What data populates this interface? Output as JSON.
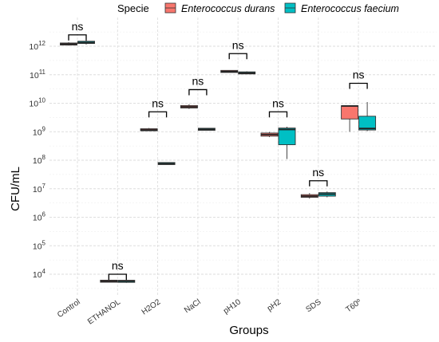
{
  "chart_data": {
    "type": "box",
    "xlabel": "Groups",
    "ylabel": "CFU/mL",
    "y_scale": "log10",
    "ylim": [
      1000,
      30000000000000
    ],
    "y_ticks": [
      {
        "value": 1000000000000,
        "base": "10",
        "exp": "12"
      },
      {
        "value": 100000000000,
        "base": "10",
        "exp": "11"
      },
      {
        "value": 10000000000,
        "base": "10",
        "exp": "10"
      },
      {
        "value": 1000000000,
        "base": "10",
        "exp": "9"
      },
      {
        "value": 100000000,
        "base": "10",
        "exp": "8"
      },
      {
        "value": 10000000,
        "base": "10",
        "exp": "7"
      },
      {
        "value": 1000000,
        "base": "10",
        "exp": "6"
      },
      {
        "value": 100000,
        "base": "10",
        "exp": "5"
      },
      {
        "value": 10000,
        "base": "10",
        "exp": "4"
      }
    ],
    "categories": [
      "Control",
      "ETHANOL",
      "H2O2",
      "NaCl",
      "pH10",
      "pH2",
      "SDS",
      "T60º"
    ],
    "legend": {
      "title": "Specie",
      "position": "top"
    },
    "grid": true,
    "series": [
      {
        "name": "Enterococcus durans",
        "color": "#F8766D",
        "boxes": [
          {
            "min": 1050000000000.0,
            "q1": 1100000000000.0,
            "median": 1200000000000.0,
            "q3": 1300000000000.0,
            "max": 1380000000000.0
          },
          {
            "min": 5300.0,
            "q1": 5500.0,
            "median": 5700.0,
            "q3": 5900.0,
            "max": 6000.0
          },
          {
            "min": 1050000000.0,
            "q1": 1100000000.0,
            "median": 1150000000.0,
            "q3": 1250000000.0,
            "max": 1350000000.0
          },
          {
            "min": 6300000000.0,
            "q1": 6800000000.0,
            "median": 7500000000.0,
            "q3": 8300000000.0,
            "max": 9200000000.0
          },
          {
            "min": 128000000000.0,
            "q1": 129000000000.0,
            "median": 130000000000.0,
            "q3": 132000000000.0,
            "max": 133000000000.0
          },
          {
            "min": 650000000.0,
            "q1": 700000000.0,
            "median": 800000000.0,
            "q3": 900000000.0,
            "max": 980000000.0
          },
          {
            "min": 4500000.0,
            "q1": 5000000.0,
            "median": 5500000.0,
            "q3": 6200000.0,
            "max": 7000000.0
          },
          {
            "min": 1000000000.0,
            "q1": 2800000000.0,
            "median": 8000000000.0,
            "q3": 8200000000.0,
            "max": 8500000000.0
          }
        ]
      },
      {
        "name": "Enterococcus faecium",
        "color": "#00BFC4",
        "boxes": [
          {
            "min": 1150000000000.0,
            "q1": 1250000000000.0,
            "median": 1350000000000.0,
            "q3": 1500000000000.0,
            "max": 1650000000000.0
          },
          {
            "min": 5000.0,
            "q1": 5300.0,
            "median": 5700.0,
            "q3": 6000.0,
            "max": 6300.0
          },
          {
            "min": 70000000.0,
            "q1": 73000000.0,
            "median": 76000000.0,
            "q3": 80000000.0,
            "max": 83000000.0
          },
          {
            "min": 1180000000.0,
            "q1": 1200000000.0,
            "median": 1220000000.0,
            "q3": 1240000000.0,
            "max": 1260000000.0
          },
          {
            "min": 105000000000.0,
            "q1": 110000000000.0,
            "median": 115000000000.0,
            "q3": 122000000000.0,
            "max": 132000000000.0
          },
          {
            "min": 110000000.0,
            "q1": 350000000.0,
            "median": 1200000000.0,
            "q3": 1350000000.0,
            "max": 1500000000.0
          },
          {
            "min": 5000000.0,
            "q1": 5500000.0,
            "median": 6500000.0,
            "q3": 7300000.0,
            "max": 8000000.0
          },
          {
            "min": 1050000000.0,
            "q1": 1150000000.0,
            "median": 1300000000.0,
            "q3": 3500000000.0,
            "max": 11000000000.0
          }
        ]
      }
    ],
    "annotations": [
      {
        "category": "Control",
        "text": "ns",
        "bracket_y": 2500000000000.0
      },
      {
        "category": "ETHANOL",
        "text": "ns",
        "bracket_y": 10000.0
      },
      {
        "category": "H2O2",
        "text": "ns",
        "bracket_y": 5000000000.0
      },
      {
        "category": "NaCl",
        "text": "ns",
        "bracket_y": 30000000000.0
      },
      {
        "category": "pH10",
        "text": "ns",
        "bracket_y": 550000000000.0
      },
      {
        "category": "pH2",
        "text": "ns",
        "bracket_y": 5000000000.0
      },
      {
        "category": "SDS",
        "text": "ns",
        "bracket_y": 19000000.0
      },
      {
        "category": "T60º",
        "text": "ns",
        "bracket_y": 50000000000.0
      }
    ]
  }
}
